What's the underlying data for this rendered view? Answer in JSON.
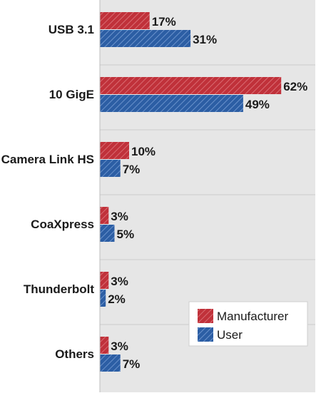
{
  "chart_data": {
    "type": "bar",
    "orientation": "horizontal",
    "categories": [
      "USB 3.1",
      "10 GigE",
      "Camera Link HS",
      "CoaXpress",
      "Thunderbolt",
      "Others"
    ],
    "series": [
      {
        "name": "Manufacturer",
        "values": [
          17,
          62,
          10,
          3,
          3,
          3
        ],
        "labels": [
          "17%",
          "62%",
          "10%",
          "3%",
          "3%",
          "3%"
        ],
        "color": "#c0313a"
      },
      {
        "name": "User",
        "values": [
          31,
          49,
          7,
          5,
          2,
          7
        ],
        "labels": [
          "31%",
          "49%",
          "7%",
          "5%",
          "2%",
          "7%"
        ],
        "color": "#2c5ea4"
      }
    ],
    "title": "",
    "xlabel": "",
    "ylabel": "",
    "xlim": [
      0,
      70
    ],
    "grid": true,
    "legend": "bottom-right",
    "background": "#e6e6e6"
  }
}
